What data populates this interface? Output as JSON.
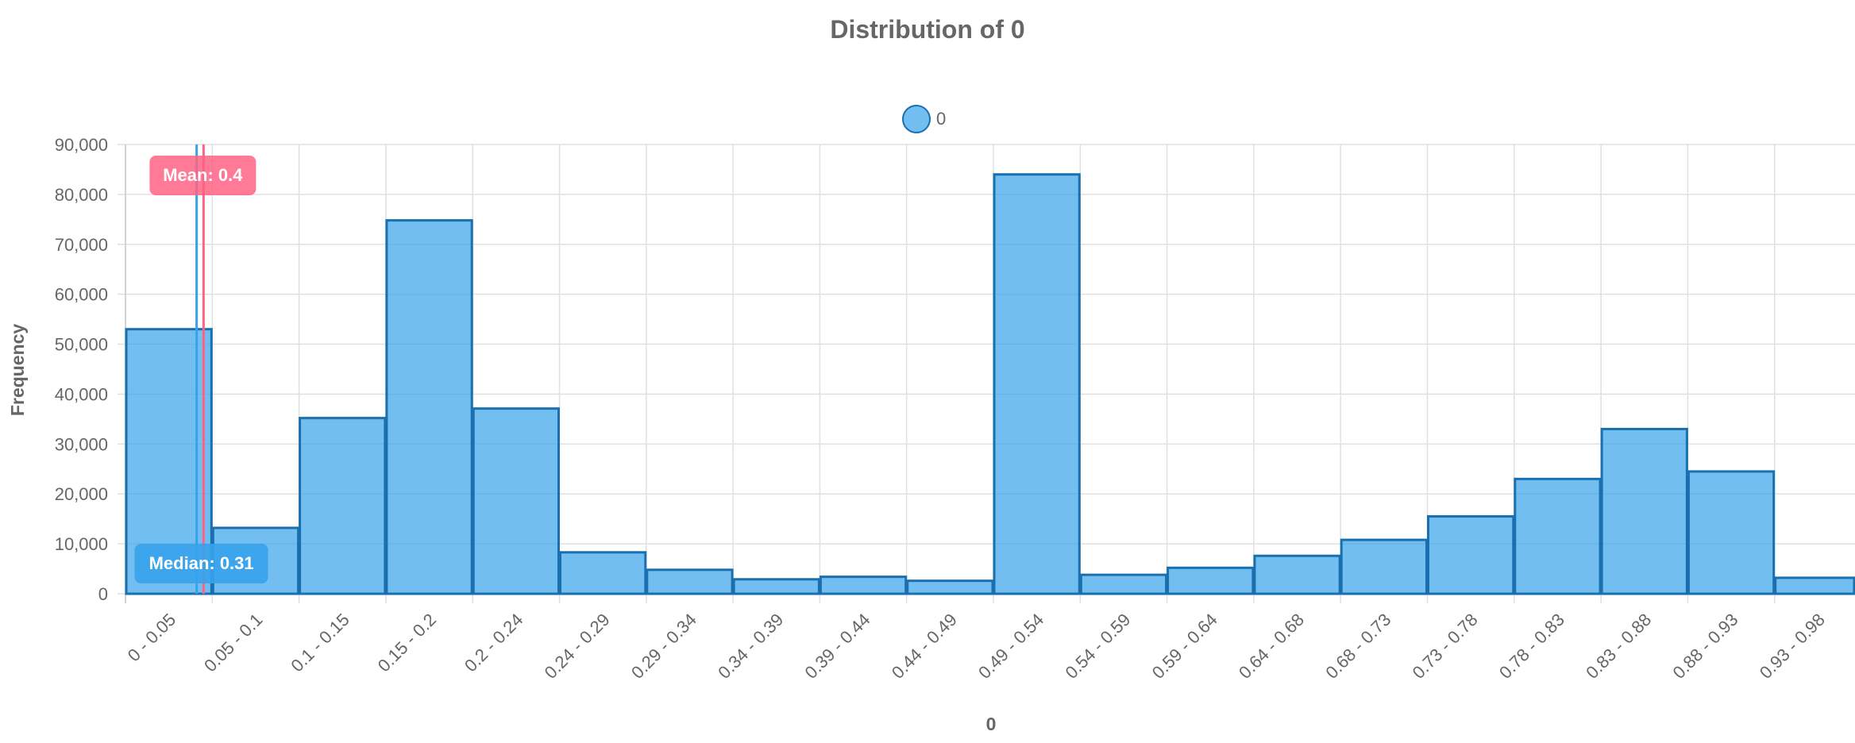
{
  "chart_data": {
    "type": "bar",
    "title": "Distribution of 0",
    "xlabel": "0",
    "ylabel": "Frequency",
    "ylim": [
      0,
      90000
    ],
    "y_ticks": [
      0,
      10000,
      20000,
      30000,
      40000,
      50000,
      60000,
      70000,
      80000,
      90000
    ],
    "y_tick_labels": [
      "0",
      "10,000",
      "20,000",
      "30,000",
      "40,000",
      "50,000",
      "60,000",
      "70,000",
      "80,000",
      "90,000"
    ],
    "x_range": [
      0,
      1
    ],
    "grid": true,
    "legend": {
      "position": "top-center",
      "entries": [
        "0"
      ]
    },
    "categories": [
      "0 - 0.05",
      "0.05 - 0.1",
      "0.1 - 0.15",
      "0.15 - 0.2",
      "0.2 - 0.24",
      "0.24 - 0.29",
      "0.29 - 0.34",
      "0.34 - 0.39",
      "0.39 - 0.44",
      "0.44 - 0.49",
      "0.49 - 0.54",
      "0.54 - 0.59",
      "0.59 - 0.64",
      "0.64 - 0.68",
      "0.68 - 0.73",
      "0.73 - 0.78",
      "0.78 - 0.83",
      "0.83 - 0.88",
      "0.88 - 0.93",
      "0.93 - 0.98"
    ],
    "series": [
      {
        "name": "0",
        "values": [
          53000,
          13200,
          35200,
          74800,
          37100,
          8300,
          4800,
          2900,
          3400,
          2600,
          84000,
          3800,
          5200,
          7600,
          10800,
          15500,
          23000,
          33000,
          24500,
          3200
        ]
      }
    ],
    "annotations": [
      {
        "label": "Mean: 0.4",
        "x": 0.045,
        "color": "#ff6384"
      },
      {
        "label": "Median: 0.31",
        "x": 0.041,
        "color": "#36a2eb"
      }
    ],
    "colors": {
      "bar_fill": "#36a2eb",
      "bar_stroke": "#1a6fae",
      "mean": "#ff6384",
      "median": "#36a2eb",
      "grid": "#e0e0e0",
      "text": "#666666"
    }
  }
}
